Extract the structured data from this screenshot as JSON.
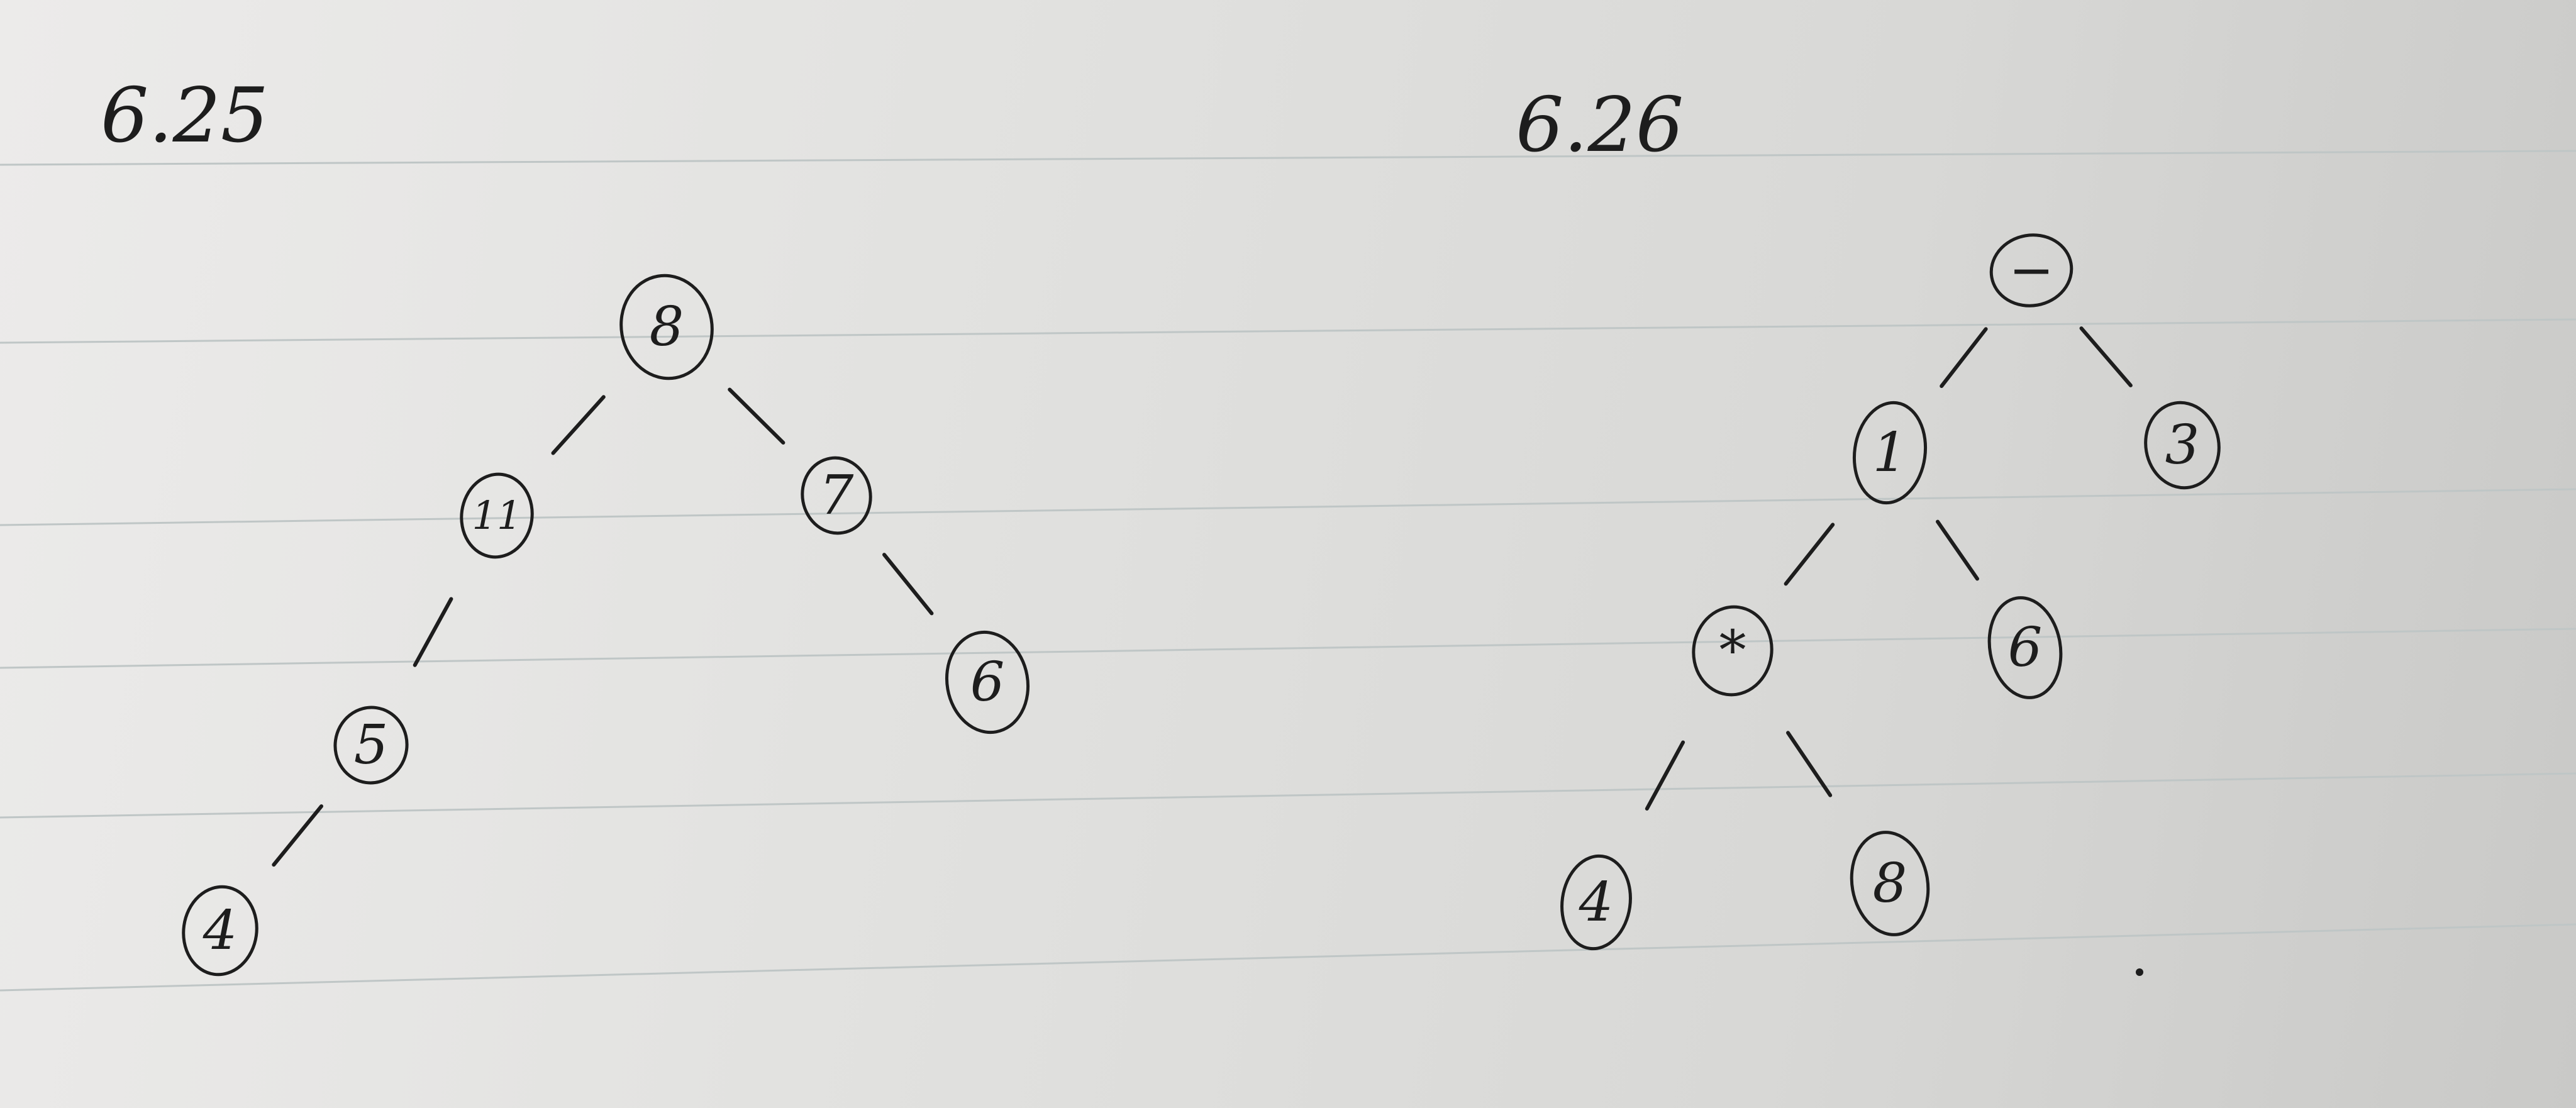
{
  "diagrams": [
    {
      "label": "6.25",
      "nodes": [
        {
          "id": "a",
          "text": "8"
        },
        {
          "id": "b",
          "text": "11"
        },
        {
          "id": "c",
          "text": "7"
        },
        {
          "id": "d",
          "text": "5"
        },
        {
          "id": "e",
          "text": "6"
        },
        {
          "id": "f",
          "text": "4"
        }
      ],
      "edges": [
        [
          "a",
          "b"
        ],
        [
          "a",
          "c"
        ],
        [
          "b",
          "d"
        ],
        [
          "c",
          "e"
        ],
        [
          "d",
          "f"
        ]
      ]
    },
    {
      "label": "6.26",
      "nodes": [
        {
          "id": "a",
          "text": "−"
        },
        {
          "id": "b",
          "text": "1"
        },
        {
          "id": "c",
          "text": "3"
        },
        {
          "id": "d",
          "text": "*"
        },
        {
          "id": "e",
          "text": "6"
        },
        {
          "id": "f",
          "text": "4"
        },
        {
          "id": "g",
          "text": "8"
        }
      ],
      "edges": [
        [
          "a",
          "b"
        ],
        [
          "a",
          "c"
        ],
        [
          "b",
          "d"
        ],
        [
          "b",
          "e"
        ],
        [
          "d",
          "f"
        ],
        [
          "d",
          "g"
        ]
      ]
    }
  ],
  "colors": {
    "ink": "#1d1d1d",
    "paper": "#e6e6e4",
    "rule": "#bfc6c6"
  }
}
